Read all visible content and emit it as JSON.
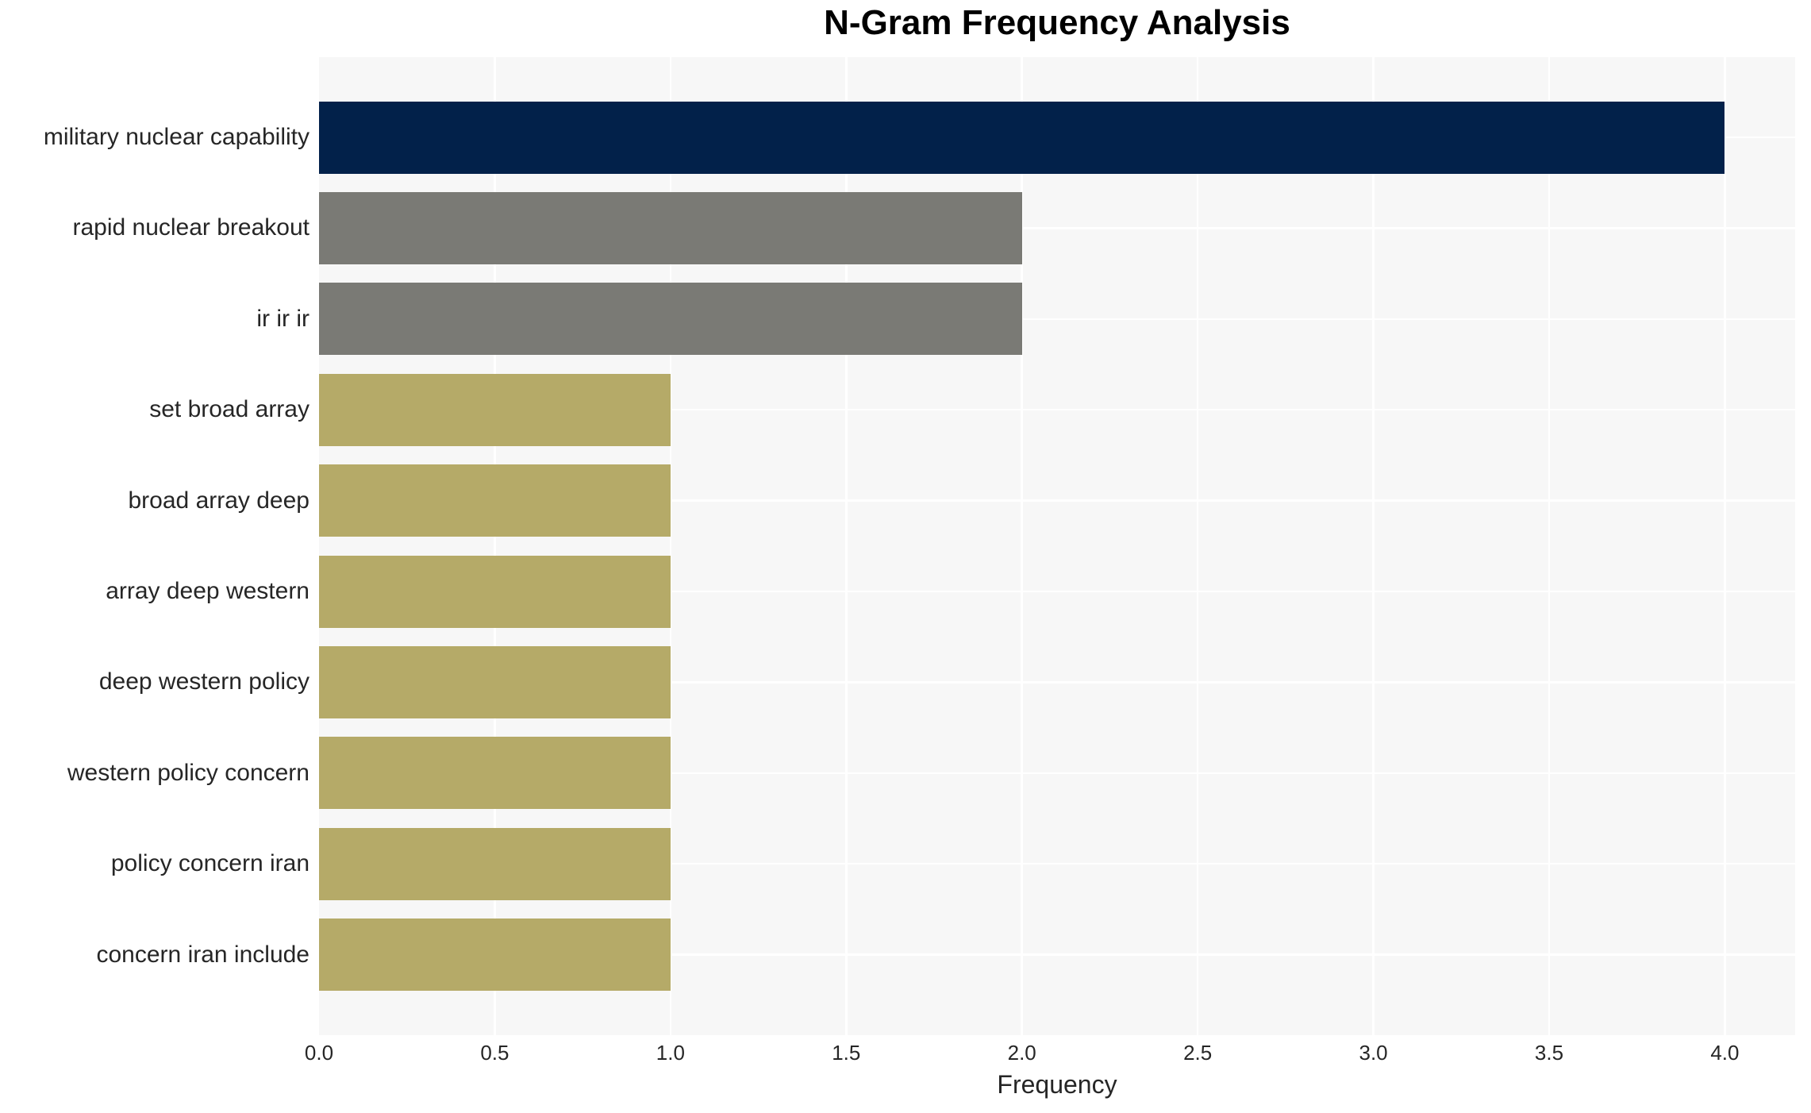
{
  "chart_data": {
    "type": "bar",
    "orientation": "horizontal",
    "title": "N-Gram Frequency Analysis",
    "xlabel": "Frequency",
    "ylabel": "",
    "categories": [
      "military nuclear capability",
      "rapid nuclear breakout",
      "ir ir ir",
      "set broad array",
      "broad array deep",
      "array deep western",
      "deep western policy",
      "western policy concern",
      "policy concern iran",
      "concern iran include"
    ],
    "values": [
      4,
      2,
      2,
      1,
      1,
      1,
      1,
      1,
      1,
      1
    ],
    "bar_colors": [
      "#02214A",
      "#7A7A75",
      "#7A7A75",
      "#B5AA68",
      "#B5AA68",
      "#B5AA68",
      "#B5AA68",
      "#B5AA68",
      "#B5AA68",
      "#B5AA68"
    ],
    "xlim": [
      0,
      4.2
    ],
    "xticks": [
      0.0,
      0.5,
      1.0,
      1.5,
      2.0,
      2.5,
      3.0,
      3.5,
      4.0
    ],
    "xtick_labels": [
      "0.0",
      "0.5",
      "1.0",
      "1.5",
      "2.0",
      "2.5",
      "3.0",
      "3.5",
      "4.0"
    ],
    "grid": "on",
    "legend": "none",
    "colors": {
      "plot_background": "#f7f7f7",
      "gridline": "#ffffff",
      "title_text": "#000000",
      "tick_text": "#262626",
      "navy": "#02214A",
      "gray": "#7A7A75",
      "khaki": "#B5AA68"
    }
  }
}
